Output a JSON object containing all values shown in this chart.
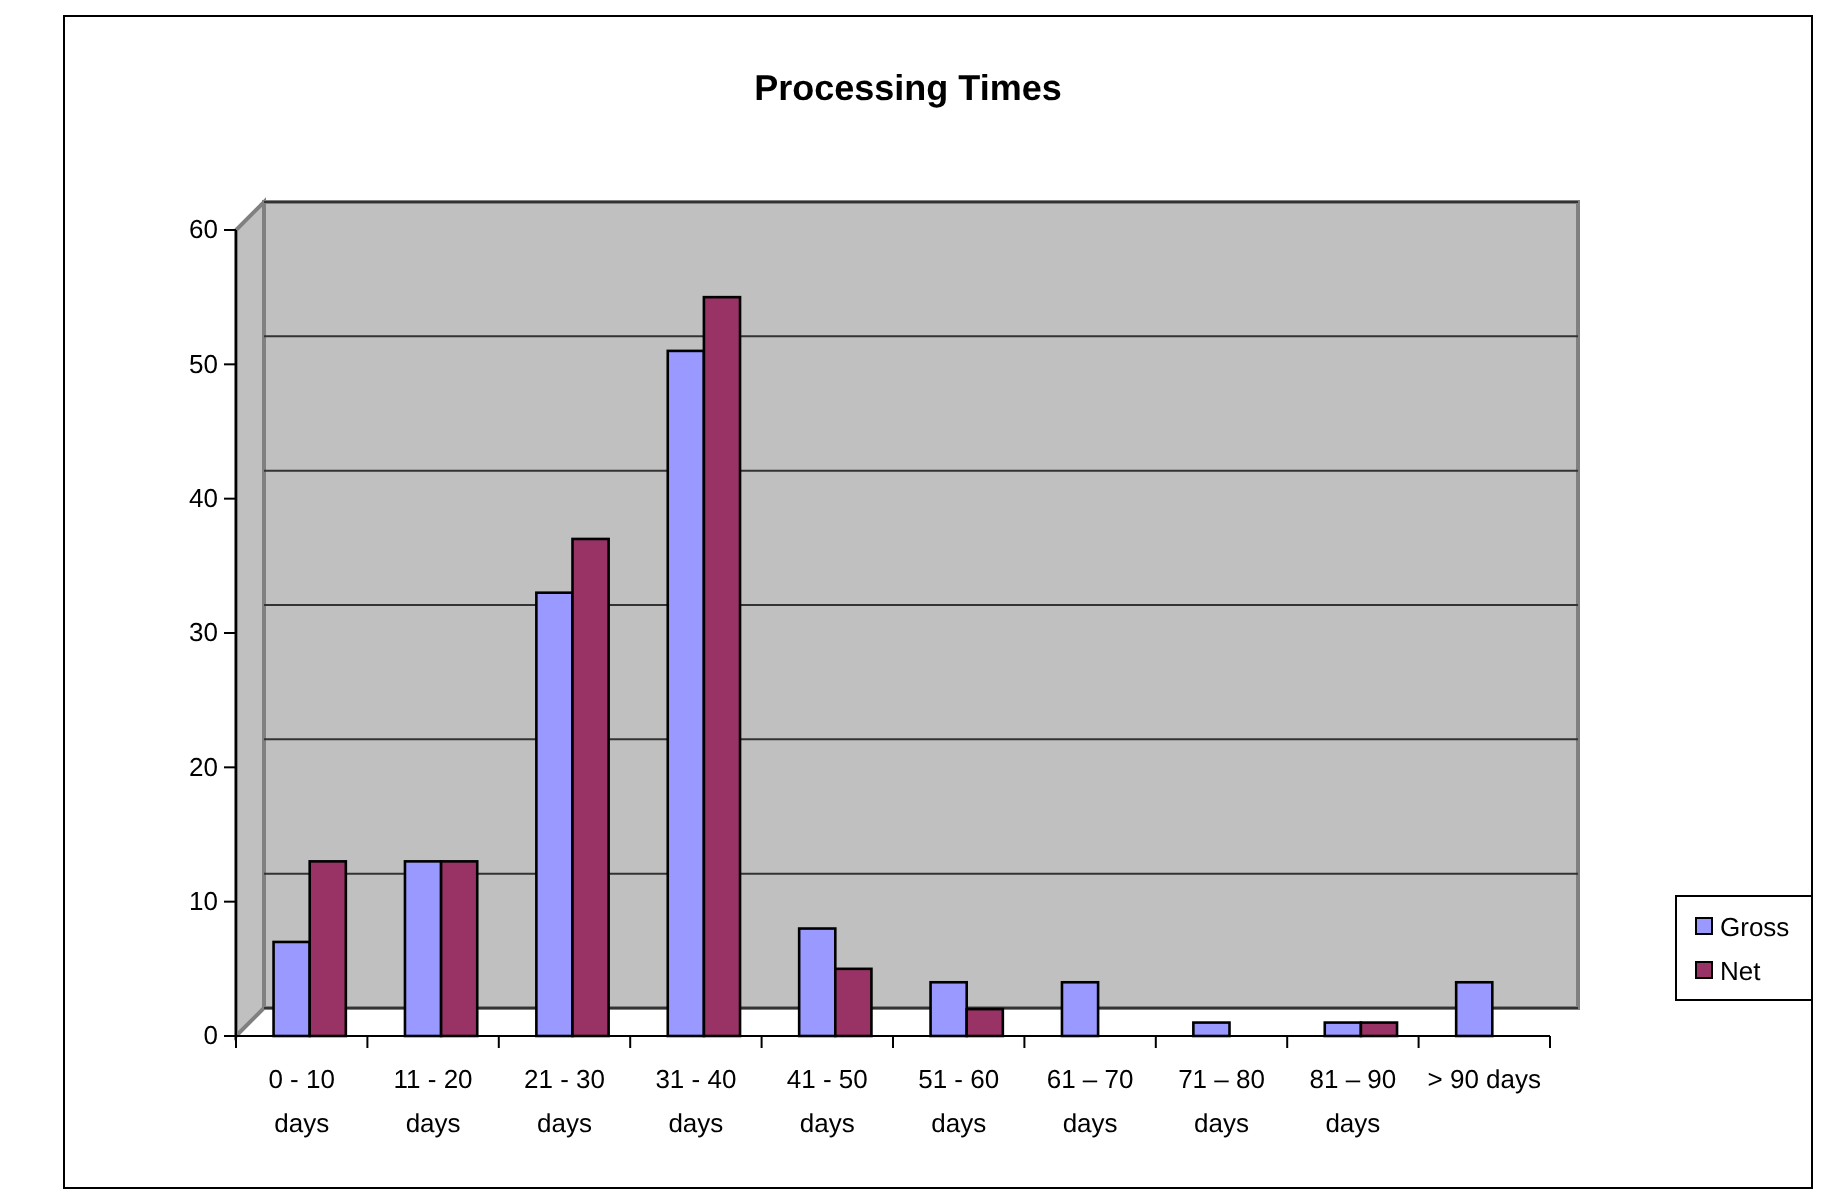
{
  "chart_data": {
    "type": "bar",
    "title": "Processing Times",
    "categories": [
      "0 - 10 days",
      "11 - 20 days",
      "21 - 30 days",
      "31 - 40 days",
      "41 - 50 days",
      "51 - 60 days",
      "61 – 70 days",
      "71 – 80 days",
      "81 – 90 days",
      "> 90 days"
    ],
    "series": [
      {
        "name": "Gross",
        "color": "#9999ff",
        "values": [
          7,
          13,
          33,
          51,
          8,
          4,
          4,
          1,
          1,
          4
        ]
      },
      {
        "name": "Net",
        "color": "#993366",
        "values": [
          13,
          13,
          37,
          55,
          5,
          2,
          0,
          0,
          1,
          0
        ]
      }
    ],
    "ylim": [
      0,
      60
    ],
    "yticks": [
      0,
      10,
      20,
      30,
      40,
      50,
      60
    ],
    "grid": "y",
    "legend": "right"
  }
}
